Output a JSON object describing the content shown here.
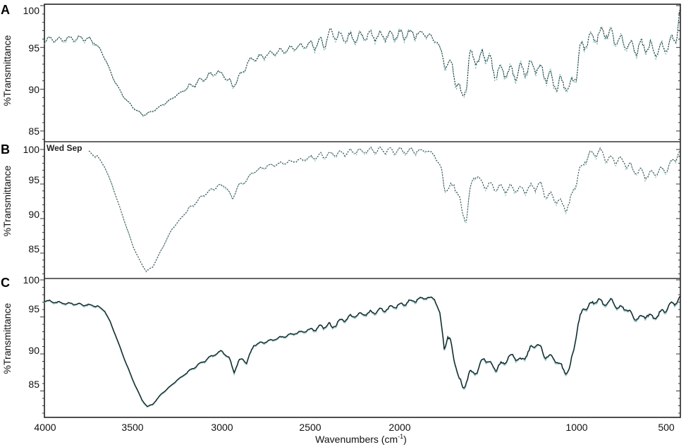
{
  "figure": {
    "x_axis_title": "Wavenumbers (cm",
    "x_axis_title_sup": "-1",
    "x_axis_title_close": ")",
    "x_ticks": [
      "4000",
      "3500",
      "3000",
      "2500",
      "2000",
      "1000",
      "500"
    ],
    "panels": [
      {
        "letter": "A",
        "ylabel": "%Transmittance",
        "yticks": [
          "100",
          "95",
          "90",
          "85"
        ]
      },
      {
        "letter": "B",
        "ylabel": "%Transmittance",
        "yticks": [
          "100",
          "95",
          "90",
          "85"
        ],
        "stamp": "Wed Sep"
      },
      {
        "letter": "C",
        "ylabel": "%Transmittance",
        "yticks": [
          "100",
          "95",
          "90",
          "85"
        ]
      }
    ],
    "colors": {
      "line": "#1e2b2b",
      "noise": "#6fb8b8",
      "frame": "#222222"
    }
  },
  "chart_data": [
    {
      "type": "line",
      "title": "A",
      "xlabel": "Wavenumbers (cm-1)",
      "ylabel": "%Transmittance",
      "xlim": [
        4000,
        410
      ],
      "ylim": [
        83.5,
        100
      ],
      "x_ticks": [
        4000,
        3500,
        3000,
        2500,
        2000,
        1000,
        500
      ],
      "y_ticks": [
        85,
        90,
        95,
        100
      ],
      "grid": false,
      "series": [
        {
          "name": "A",
          "x": [
            4000,
            3880,
            3773,
            3720,
            3690,
            3650,
            3614,
            3560,
            3500,
            3443,
            3380,
            3300,
            3255,
            3150,
            3038,
            2990,
            2938,
            2900,
            2840,
            2760,
            2660,
            2540,
            2422,
            2390,
            2382,
            2340,
            2302,
            2200,
            2100,
            2000,
            1900,
            1865,
            1785,
            1760,
            1738,
            1700,
            1670,
            1646,
            1620,
            1600,
            1579,
            1550,
            1530,
            1507,
            1467,
            1400,
            1350,
            1300,
            1229,
            1180,
            1110,
            1070,
            1038,
            1000,
            980,
            950,
            900,
            831,
            780,
            720,
            672,
            620,
            552,
            500,
            460,
            433,
            413
          ],
          "y": [
            95.9,
            96.0,
            96.1,
            95.7,
            94.9,
            93.3,
            91.4,
            89.3,
            87.8,
            86.9,
            87.5,
            88.6,
            89.3,
            90.7,
            92.0,
            91.8,
            90.4,
            91.5,
            93.5,
            94.0,
            94.6,
            95.2,
            95.6,
            96.6,
            96.9,
            96.2,
            96.1,
            96.3,
            96.4,
            96.5,
            96.7,
            96.7,
            95.8,
            94.2,
            93.2,
            92.8,
            90.5,
            88.9,
            90.8,
            93.8,
            94.2,
            93.0,
            94.3,
            94.1,
            92.2,
            92.0,
            91.9,
            92.3,
            92.9,
            91.8,
            90.5,
            90.8,
            89.9,
            92.0,
            94.5,
            95.6,
            96.2,
            96.9,
            95.8,
            95.6,
            94.8,
            95.2,
            94.6,
            95.1,
            95.6,
            96.5,
            99.8
          ]
        }
      ]
    },
    {
      "type": "line",
      "title": "B",
      "xlabel": "Wavenumbers (cm-1)",
      "ylabel": "%Transmittance",
      "xlim": [
        4000,
        410
      ],
      "ylim": [
        81.0,
        100.5
      ],
      "x_ticks": [
        4000,
        3500,
        3000,
        2500,
        2000,
        1000,
        500
      ],
      "y_ticks": [
        85,
        90,
        95,
        100
      ],
      "grid": false,
      "annotations": [
        "Wed Sep"
      ],
      "series": [
        {
          "name": "B",
          "x": [
            3750,
            3700,
            3660,
            3620,
            3580,
            3540,
            3500,
            3460,
            3425,
            3390,
            3340,
            3280,
            3200,
            3100,
            3020,
            2980,
            2940,
            2910,
            2870,
            2820,
            2740,
            2620,
            2500,
            2400,
            2300,
            2200,
            2100,
            2000,
            1900,
            1850,
            1800,
            1760,
            1740,
            1720,
            1690,
            1670,
            1640,
            1620,
            1600,
            1580,
            1560,
            1540,
            1500,
            1450,
            1400,
            1350,
            1300,
            1250,
            1200,
            1180,
            1150,
            1100,
            1060,
            1040,
            1010,
            980,
            940,
            900,
            860,
            830,
            800,
            760,
            720,
            680,
            640,
            600,
            560,
            520,
            480,
            440,
            415
          ],
          "y": [
            99.6,
            99.0,
            97.5,
            95.0,
            92.0,
            89.0,
            86.0,
            83.8,
            82.4,
            83.0,
            85.5,
            88.5,
            91.0,
            93.5,
            94.8,
            94.8,
            92.9,
            94.6,
            95.4,
            96.8,
            97.6,
            98.2,
            98.8,
            99.3,
            99.6,
            99.8,
            99.9,
            99.8,
            99.8,
            99.9,
            99.3,
            97.0,
            94.3,
            94.0,
            95.2,
            93.8,
            90.5,
            90.2,
            94.0,
            96.0,
            96.4,
            95.3,
            94.8,
            94.5,
            94.3,
            94.4,
            94.2,
            94.5,
            94.9,
            93.5,
            93.3,
            92.6,
            91.6,
            91.9,
            94.8,
            97.0,
            99.0,
            99.6,
            99.5,
            98.8,
            98.4,
            98.6,
            98.0,
            97.0,
            96.7,
            96.2,
            96.8,
            97.0,
            97.5,
            98.8,
            99.9
          ]
        }
      ]
    },
    {
      "type": "line",
      "title": "C",
      "xlabel": "Wavenumbers (cm-1)",
      "ylabel": "%Transmittance",
      "xlim": [
        4000,
        410
      ],
      "ylim": [
        80.5,
        100
      ],
      "x_ticks": [
        4000,
        3500,
        3000,
        2500,
        2000,
        1000,
        500
      ],
      "y_ticks": [
        85,
        90,
        95,
        100
      ],
      "grid": false,
      "series": [
        {
          "name": "C",
          "x": [
            4000,
            3900,
            3800,
            3700,
            3660,
            3630,
            3600,
            3550,
            3500,
            3450,
            3420,
            3390,
            3340,
            3250,
            3150,
            3050,
            3000,
            2960,
            2930,
            2900,
            2880,
            2860,
            2820,
            2700,
            2600,
            2500,
            2420,
            2395,
            2380,
            2340,
            2250,
            2150,
            2050,
            1950,
            1880,
            1840,
            1800,
            1770,
            1745,
            1725,
            1710,
            1690,
            1660,
            1640,
            1620,
            1600,
            1560,
            1520,
            1490,
            1450,
            1400,
            1360,
            1310,
            1260,
            1220,
            1180,
            1130,
            1090,
            1060,
            1040,
            1020,
            990,
            960,
            920,
            880,
            850,
            800,
            760,
            720,
            680,
            640,
            600,
            560,
            520,
            480,
            440,
            415
          ],
          "y": [
            97.2,
            96.9,
            96.7,
            96.5,
            95.8,
            94.4,
            92.6,
            89.4,
            86.4,
            83.8,
            82.9,
            83.2,
            84.6,
            86.5,
            88.3,
            89.8,
            90.4,
            89.5,
            87.6,
            89.2,
            89.3,
            88.8,
            91.2,
            92.0,
            92.7,
            93.3,
            93.7,
            94.1,
            93.5,
            94.4,
            95.2,
            95.6,
            96.2,
            97.0,
            97.5,
            97.6,
            97.5,
            95.5,
            90.9,
            92.2,
            91.7,
            89.5,
            86.5,
            85.4,
            86.4,
            87.4,
            87.6,
            89.6,
            88.6,
            88.0,
            89.1,
            89.8,
            89.0,
            90.6,
            91.4,
            89.8,
            89.5,
            88.5,
            87.5,
            87.7,
            90.0,
            94.0,
            96.2,
            96.6,
            97.4,
            96.8,
            97.2,
            96.1,
            96.2,
            95.0,
            94.8,
            95.3,
            94.9,
            95.6,
            96.4,
            97.0,
            97.8
          ]
        }
      ]
    }
  ]
}
